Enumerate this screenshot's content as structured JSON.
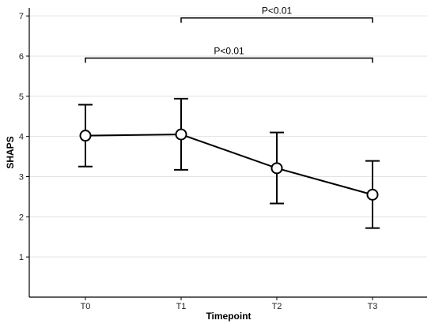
{
  "chart_data": {
    "type": "line",
    "xlabel": "Timepoint",
    "ylabel": "SHAPS",
    "categories": [
      "T0",
      "T1",
      "T2",
      "T3"
    ],
    "ylim": [
      0,
      7.2
    ],
    "yticks": [
      1,
      2,
      3,
      4,
      5,
      6,
      7
    ],
    "grid": "horizontal",
    "legend": "none",
    "series": [
      {
        "values": [
          4.02,
          4.05,
          3.21,
          2.55
        ],
        "error_low": [
          3.25,
          3.17,
          2.33,
          1.72
        ],
        "error_high": [
          4.79,
          4.94,
          4.1,
          3.39
        ]
      }
    ],
    "annotations": [
      {
        "text": "P<0.01",
        "from": "T1",
        "to": "T3",
        "y": 6.95
      },
      {
        "text": "P<0.01",
        "from": "T0",
        "to": "T3",
        "y": 5.95
      }
    ]
  }
}
